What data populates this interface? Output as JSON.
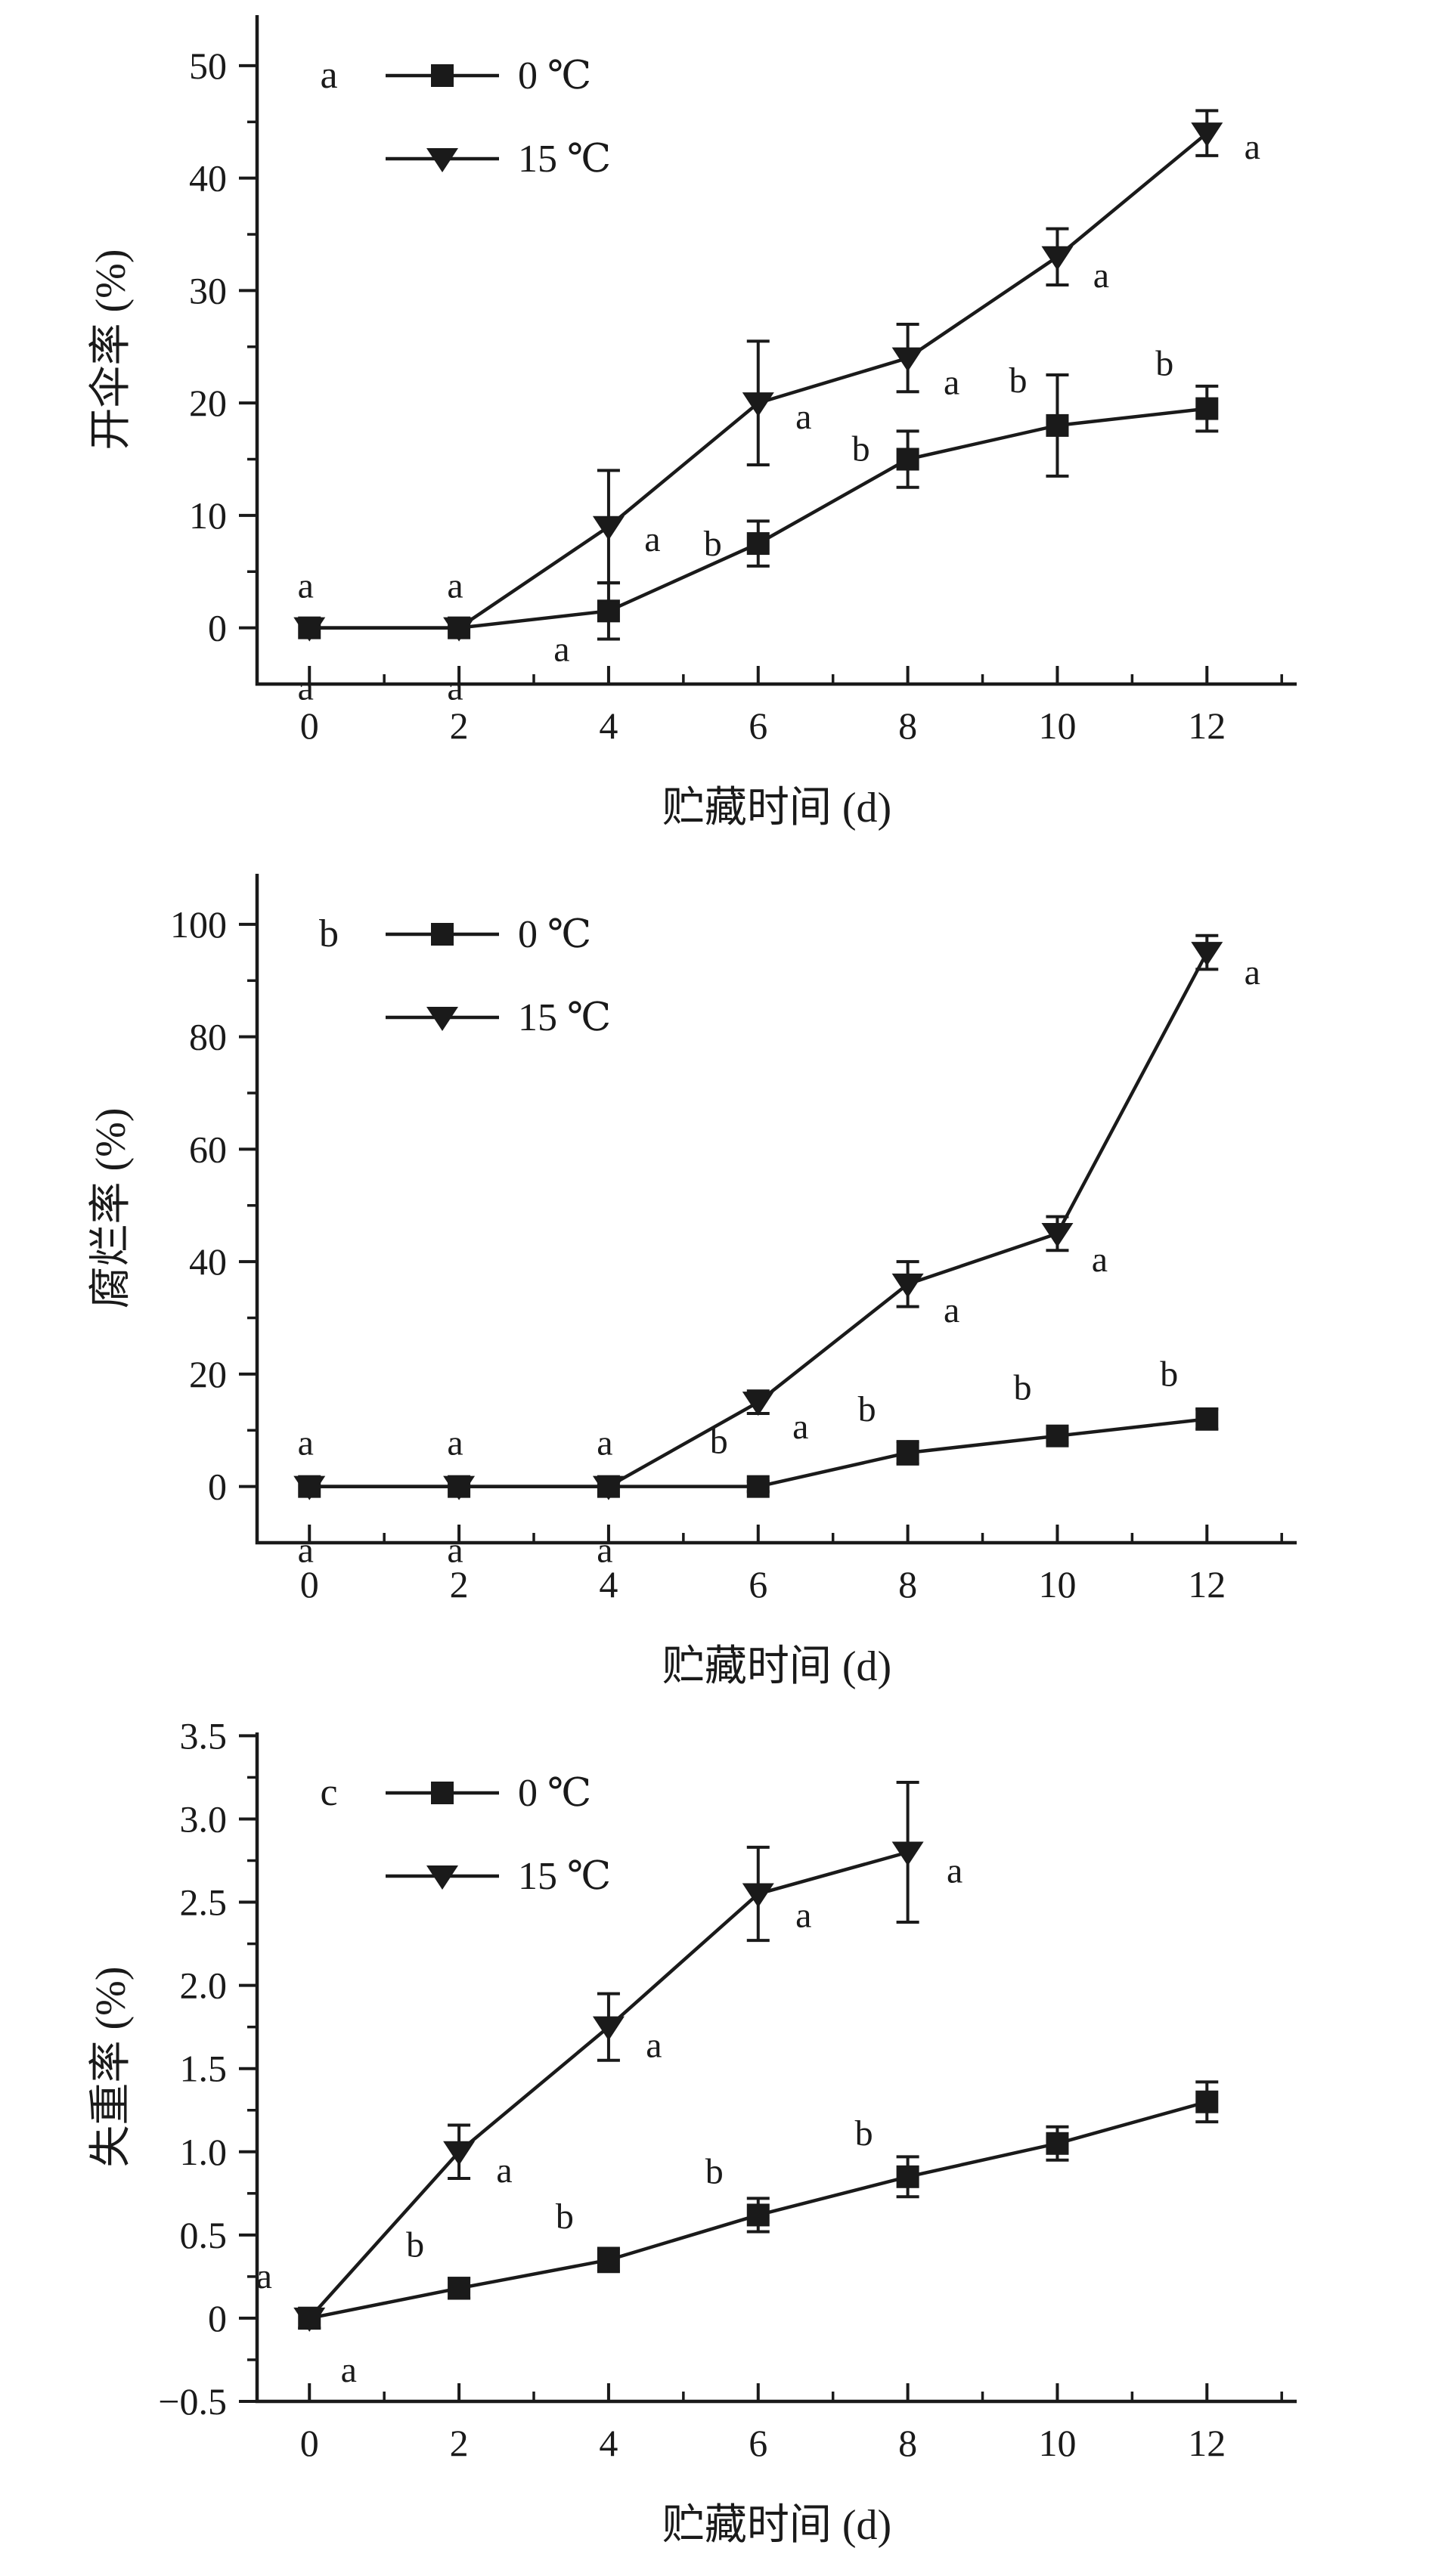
{
  "figure": {
    "background": "#ffffff",
    "ink_color": "#1a1a1a",
    "x_axis_label": "贮藏时间 (d)",
    "panel_letters": [
      "a",
      "b",
      "c"
    ],
    "legend_labels": [
      "0 ℃",
      "15 ℃"
    ]
  },
  "chart_data": [
    {
      "type": "line",
      "panel_label": "a",
      "xlabel": "贮藏时间 (d)",
      "ylabel": "开伞率 (%)",
      "xlim": [
        -0.7,
        13.2
      ],
      "ylim": [
        -5,
        54.5
      ],
      "x_major_ticks": [
        0,
        2,
        4,
        6,
        8,
        10,
        12
      ],
      "x_tick_labels": [
        "0",
        "2",
        "4",
        "6",
        "8",
        "10",
        "12"
      ],
      "x_minor_ticks": [
        1,
        3,
        5,
        7,
        9,
        11,
        13
      ],
      "y_major_ticks": [
        0,
        10,
        20,
        30,
        40,
        50
      ],
      "y_tick_labels": [
        "0",
        "10",
        "20",
        "30",
        "40",
        "50"
      ],
      "y_minor_ticks": [
        5,
        15,
        25,
        35,
        45
      ],
      "grid": false,
      "legend": {
        "position": "top-left",
        "entries": [
          {
            "label": "0 ℃",
            "marker": "square"
          },
          {
            "label": "15 ℃",
            "marker": "triangle-down"
          }
        ]
      },
      "series": [
        {
          "name": "0 ℃",
          "marker": "square",
          "x": [
            0,
            2,
            4,
            6,
            8,
            10,
            12
          ],
          "y": [
            0,
            0,
            1.5,
            7.5,
            15,
            18,
            19.5
          ],
          "yerr": [
            0,
            0,
            2.5,
            2,
            2.5,
            4.5,
            2
          ]
        },
        {
          "name": "15 ℃",
          "marker": "triangle-down",
          "x": [
            0,
            2,
            4,
            6,
            8,
            10,
            12
          ],
          "y": [
            0,
            0,
            9,
            20,
            24,
            33,
            44
          ],
          "yerr": [
            0,
            0,
            5,
            5.5,
            3,
            2.5,
            2
          ]
        }
      ],
      "sig_letters": [
        [
          0,
          0,
          "a",
          -5,
          -40
        ],
        [
          0,
          0,
          "a",
          -5,
          95
        ],
        [
          2,
          0,
          "a",
          -5,
          -40
        ],
        [
          2,
          0,
          "a",
          -5,
          95
        ],
        [
          4,
          9,
          "a",
          58,
          32
        ],
        [
          4,
          1.5,
          "a",
          -62,
          66
        ],
        [
          6,
          20,
          "a",
          60,
          34
        ],
        [
          6,
          7.5,
          "b",
          -60,
          16
        ],
        [
          8,
          24,
          "a",
          58,
          48
        ],
        [
          8,
          15,
          "b",
          -62,
          2
        ],
        [
          10,
          33,
          "a",
          58,
          40
        ],
        [
          10,
          18,
          "b",
          -52,
          -44
        ],
        [
          12,
          44,
          "a",
          60,
          34
        ],
        [
          12,
          19.5,
          "b",
          -56,
          -44
        ]
      ]
    },
    {
      "type": "line",
      "panel_label": "b",
      "xlabel": "贮藏时间 (d)",
      "ylabel": "腐烂率 (%)",
      "xlim": [
        -0.7,
        13.2
      ],
      "ylim": [
        -10,
        109
      ],
      "x_major_ticks": [
        0,
        2,
        4,
        6,
        8,
        10,
        12
      ],
      "x_tick_labels": [
        "0",
        "2",
        "4",
        "6",
        "8",
        "10",
        "12"
      ],
      "x_minor_ticks": [
        1,
        3,
        5,
        7,
        9,
        11,
        13
      ],
      "y_major_ticks": [
        0,
        20,
        40,
        60,
        80,
        100
      ],
      "y_tick_labels": [
        "0",
        "20",
        "40",
        "60",
        "80",
        "100"
      ],
      "y_minor_ticks": [
        10,
        30,
        50,
        70,
        90
      ],
      "grid": false,
      "legend": {
        "position": "top-left",
        "entries": [
          {
            "label": "0 ℃",
            "marker": "square"
          },
          {
            "label": "15 ℃",
            "marker": "triangle-down"
          }
        ]
      },
      "series": [
        {
          "name": "0 ℃",
          "marker": "square",
          "x": [
            0,
            2,
            4,
            6,
            8,
            10,
            12
          ],
          "y": [
            0,
            0,
            0,
            0,
            6,
            9,
            12
          ],
          "yerr": [
            0,
            0,
            0,
            0.9,
            2,
            1.2,
            1.8
          ]
        },
        {
          "name": "15 ℃",
          "marker": "triangle-down",
          "x": [
            0,
            2,
            4,
            6,
            8,
            10,
            12
          ],
          "y": [
            0,
            0,
            0,
            15,
            36,
            45,
            95
          ],
          "yerr": [
            0,
            0,
            0,
            2,
            4,
            3,
            3
          ]
        }
      ],
      "sig_letters": [
        [
          0,
          0,
          "a",
          -5,
          -42
        ],
        [
          0,
          0,
          "a",
          -5,
          100
        ],
        [
          2,
          0,
          "a",
          -5,
          -42
        ],
        [
          2,
          0,
          "a",
          -5,
          100
        ],
        [
          4,
          0,
          "a",
          -5,
          -42
        ],
        [
          4,
          0,
          "a",
          -5,
          100
        ],
        [
          6,
          0,
          "b",
          -52,
          -44
        ],
        [
          6,
          15,
          "a",
          56,
          48
        ],
        [
          8,
          6,
          "b",
          -54,
          -42
        ],
        [
          8,
          36,
          "a",
          58,
          50
        ],
        [
          10,
          9,
          "b",
          -46,
          -48
        ],
        [
          10,
          45,
          "a",
          56,
          50
        ],
        [
          12,
          12,
          "b",
          -50,
          -44
        ],
        [
          12,
          95,
          "a",
          60,
          42
        ]
      ]
    },
    {
      "type": "line",
      "panel_label": "c",
      "xlabel": "贮藏时间 (d)",
      "ylabel": "失重率 (%)",
      "xlim": [
        -0.7,
        13.2
      ],
      "ylim": [
        -0.5,
        3.52
      ],
      "x_major_ticks": [
        0,
        2,
        4,
        6,
        8,
        10,
        12
      ],
      "x_tick_labels": [
        "0",
        "2",
        "4",
        "6",
        "8",
        "10",
        "12"
      ],
      "x_minor_ticks": [
        1,
        3,
        5,
        7,
        9,
        11,
        13
      ],
      "y_major_ticks": [
        -0.5,
        0,
        0.5,
        1.0,
        1.5,
        2.0,
        2.5,
        3.0,
        3.5
      ],
      "y_tick_labels": [
        "−0.5",
        "0",
        "0.5",
        "1.0",
        "1.5",
        "2.0",
        "2.5",
        "3.0",
        "3.5"
      ],
      "y_minor_ticks": [
        -0.25,
        0.25,
        0.75,
        1.25,
        1.75,
        2.25,
        2.75,
        3.25
      ],
      "grid": false,
      "legend": {
        "position": "top-left",
        "entries": [
          {
            "label": "0 ℃",
            "marker": "square"
          },
          {
            "label": "15 ℃",
            "marker": "triangle-down"
          }
        ]
      },
      "series": [
        {
          "name": "0 ℃",
          "marker": "square",
          "x": [
            0,
            2,
            4,
            6,
            8,
            10,
            12
          ],
          "y": [
            0,
            0.18,
            0.35,
            0.62,
            0.85,
            1.05,
            1.3
          ],
          "yerr": [
            0.06,
            0.06,
            0.07,
            0.1,
            0.12,
            0.1,
            0.12
          ]
        },
        {
          "name": "15 ℃",
          "marker": "triangle-down",
          "x": [
            0,
            2,
            4,
            6,
            8
          ],
          "y": [
            0,
            1.0,
            1.75,
            2.55,
            2.8
          ],
          "yerr": [
            0,
            0.16,
            0.2,
            0.28,
            0.42
          ]
        }
      ],
      "sig_letters": [
        [
          0,
          0,
          "a",
          -60,
          -40
        ],
        [
          0,
          0,
          "a",
          52,
          84
        ],
        [
          2,
          0.18,
          "b",
          -58,
          -42
        ],
        [
          2,
          1.0,
          "a",
          60,
          40
        ],
        [
          4,
          0.35,
          "b",
          -58,
          -42
        ],
        [
          4,
          1.75,
          "a",
          60,
          40
        ],
        [
          6,
          0.62,
          "b",
          -58,
          -42
        ],
        [
          6,
          2.55,
          "a",
          60,
          44
        ],
        [
          8,
          0.85,
          "b",
          -58,
          -42
        ],
        [
          8,
          2.8,
          "a",
          62,
          40
        ]
      ]
    }
  ]
}
